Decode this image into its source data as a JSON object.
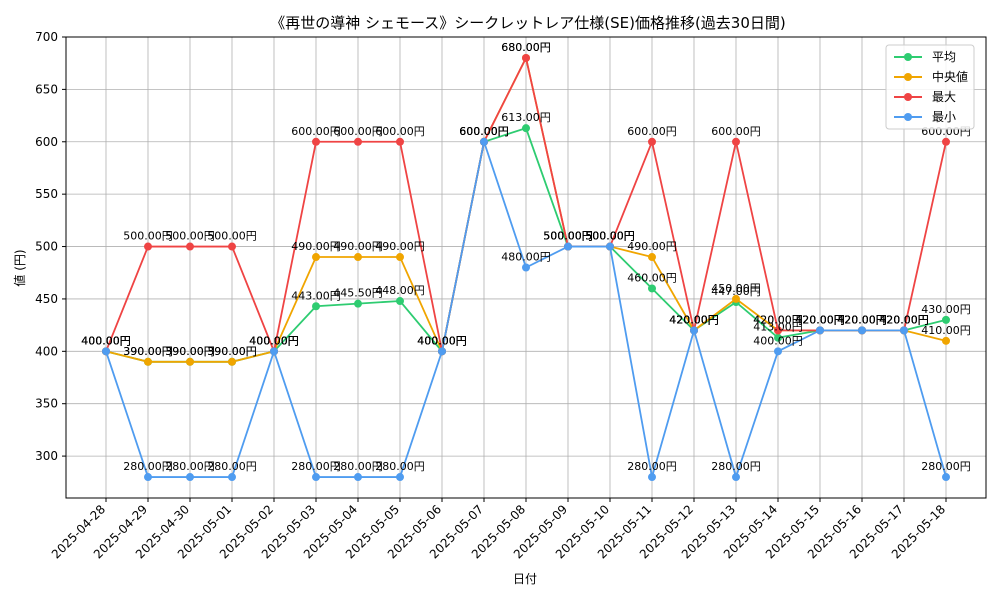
{
  "chart_data": {
    "type": "line",
    "title": "《再世の導神 シェモース》シークレットレア仕様(SE)価格推移(過去30日間)",
    "xlabel": "日付",
    "ylabel": "値 (円)",
    "ylim": [
      260,
      700
    ],
    "yticks": [
      300,
      350,
      400,
      450,
      500,
      550,
      600,
      650,
      700
    ],
    "grid": true,
    "legend_position": "top-right",
    "categories": [
      "2025-04-28",
      "2025-04-29",
      "2025-04-30",
      "2025-05-01",
      "2025-05-02",
      "2025-05-03",
      "2025-05-04",
      "2025-05-05",
      "2025-05-06",
      "2025-05-07",
      "2025-05-08",
      "2025-05-09",
      "2025-05-10",
      "2025-05-11",
      "2025-05-12",
      "2025-05-13",
      "2025-05-14",
      "2025-05-15",
      "2025-05-16",
      "2025-05-17",
      "2025-05-18"
    ],
    "series": [
      {
        "name": "平均",
        "color": "#2ecc71",
        "values": [
          400,
          390,
          390,
          390,
          400,
          443,
          445.5,
          448,
          400,
          600,
          613,
          500,
          500,
          460,
          420,
          447,
          413,
          420,
          420,
          420,
          430
        ],
        "labels": [
          "400.00円",
          "390.00円",
          "390.00円",
          "390.00円",
          "400.00円",
          "443.00円",
          "445.50円",
          "448.00円",
          "400.00円",
          "600.00円",
          "613.00円",
          "500.00円",
          "500.00円",
          "460.00円",
          "420.00円",
          "447.00円",
          "413.00円",
          "420.00円",
          "420.00円",
          "420.00円",
          "430.00円"
        ]
      },
      {
        "name": "中央値",
        "color": "#f0a500",
        "values": [
          400,
          390,
          390,
          390,
          400,
          490,
          490,
          490,
          400,
          600,
          680,
          500,
          500,
          490,
          420,
          450,
          420,
          420,
          420,
          420,
          410
        ],
        "labels": [
          "400.00円",
          "390.00円",
          "390.00円",
          "390.00円",
          "400.00円",
          "490.00円",
          "490.00円",
          "490.00円",
          "400.00円",
          "600.00円",
          "680.00円",
          "500.00円",
          "500.00円",
          "490.00円",
          "420.00円",
          "450.00円",
          "420.00円",
          "420.00円",
          "420.00円",
          "420.00円",
          "410.00円"
        ]
      },
      {
        "name": "最大",
        "color": "#ef4444",
        "values": [
          400,
          500,
          500,
          500,
          400,
          600,
          600,
          600,
          400,
          600,
          680,
          500,
          500,
          600,
          420,
          600,
          420,
          420,
          420,
          420,
          600
        ],
        "labels": [
          "400.00円",
          "500.00円",
          "500.00円",
          "500.00円",
          "400.00円",
          "600.00円",
          "600.00円",
          "600.00円",
          "400.00円",
          "600.00円",
          "680.00円",
          "500.00円",
          "500.00円",
          "600.00円",
          "420.00円",
          "600.00円",
          "420.00円",
          "420.00円",
          "420.00円",
          "420.00円",
          "600.00円"
        ]
      },
      {
        "name": "最小",
        "color": "#4f9cf0",
        "values": [
          400,
          280,
          280,
          280,
          400,
          280,
          280,
          280,
          400,
          600,
          480,
          500,
          500,
          280,
          420,
          280,
          400,
          420,
          420,
          420,
          280
        ],
        "labels": [
          "400.00円",
          "280.00円",
          "280.00円",
          "280.00円",
          "400.00円",
          "280.00円",
          "280.00円",
          "280.00円",
          "400.00円",
          "600.00円",
          "480.00円",
          "500.00円",
          "500.00円",
          "280.00円",
          "420.00円",
          "280.00円",
          "400.00円",
          "420.00円",
          "420.00円",
          "420.00円",
          "280.00円"
        ]
      }
    ]
  }
}
